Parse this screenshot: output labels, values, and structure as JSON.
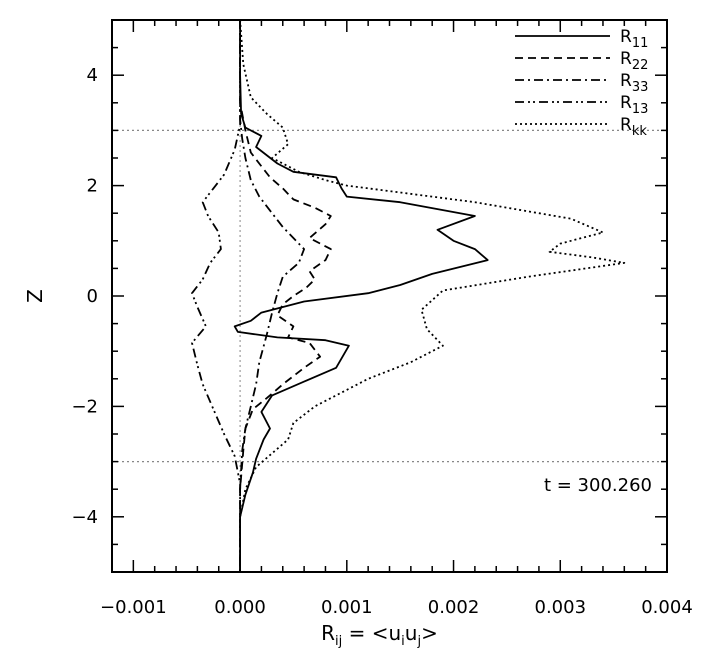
{
  "chart_data": {
    "type": "line",
    "xlabel": {
      "base": "R",
      "base_sub": "ij",
      "eq": " = ",
      "rhs_open": "<u",
      "rhs_sub1": "i",
      "rhs_mid": "u",
      "rhs_sub2": "j",
      "rhs_close": ">"
    },
    "ylabel": "Z",
    "xlim": [
      -0.0012,
      0.004
    ],
    "ylim": [
      -5,
      5
    ],
    "xticks": [
      -0.001,
      0.0,
      0.001,
      0.002,
      0.003,
      0.004
    ],
    "xtick_labels": [
      "−0.001",
      "0.000",
      "0.001",
      "0.002",
      "0.003",
      "0.004"
    ],
    "yticks": [
      -4,
      -2,
      0,
      2,
      4
    ],
    "ytick_labels": [
      "−4",
      "−2",
      "0",
      "2",
      "4"
    ],
    "annotation": "t = 300.260",
    "legend_position": "top-right",
    "reference_lines": {
      "z": [
        3,
        -3
      ],
      "x": [
        0
      ]
    },
    "grid": false,
    "series": [
      {
        "name": "R",
        "sub": "11",
        "dash": "solid",
        "x": [
          0,
          0,
          1e-05,
          5e-05,
          0.0002,
          0.00015,
          0.00035,
          0.0005,
          0.0009,
          0.00095,
          0.001,
          0.0015,
          0.0022,
          0.00185,
          0.002,
          0.0022,
          0.00232,
          0.0018,
          0.0015,
          0.0012,
          0.0006,
          0.0002,
          0.0001,
          -5e-05,
          -2e-05,
          0.00035,
          0.0008,
          0.00102,
          0.0009,
          0.0006,
          0.0003,
          0.0002,
          0.00028,
          0.00022,
          0.00018,
          0.00015,
          0.00012,
          5e-05,
          0,
          0
        ],
        "y": [
          5,
          4,
          3.3,
          3.05,
          2.9,
          2.7,
          2.4,
          2.25,
          2.15,
          1.95,
          1.8,
          1.7,
          1.45,
          1.2,
          1.0,
          0.85,
          0.65,
          0.4,
          0.2,
          0.05,
          -0.1,
          -0.3,
          -0.45,
          -0.55,
          -0.65,
          -0.75,
          -0.8,
          -0.9,
          -1.3,
          -1.55,
          -1.8,
          -2.1,
          -2.4,
          -2.6,
          -2.8,
          -2.95,
          -3.2,
          -3.6,
          -4,
          -5
        ]
      },
      {
        "name": "R",
        "sub": "22",
        "dash": "dashed",
        "x": [
          0,
          0,
          5e-05,
          0.0001,
          0.0002,
          0.00028,
          0.0004,
          0.0005,
          0.0007,
          0.00085,
          0.0008,
          0.00065,
          0.00085,
          0.0008,
          0.00065,
          0.0007,
          0.00062,
          0.0005,
          0.0004,
          0.00035,
          0.0005,
          0.00045,
          0.00065,
          0.00075,
          0.0006,
          0.0004,
          0.00025,
          0.00012,
          5e-05,
          3e-05,
          0,
          0
        ],
        "y": [
          5,
          3.5,
          3.0,
          2.6,
          2.35,
          2.15,
          1.95,
          1.75,
          1.6,
          1.45,
          1.3,
          1.05,
          0.85,
          0.65,
          0.45,
          0.3,
          0.15,
          0.0,
          -0.15,
          -0.35,
          -0.55,
          -0.75,
          -0.85,
          -1.1,
          -1.3,
          -1.6,
          -1.85,
          -2.05,
          -2.4,
          -2.8,
          -3.5,
          -5
        ]
      },
      {
        "name": "R",
        "sub": "33",
        "dash": "dashdot",
        "x": [
          0,
          0,
          2e-05,
          5e-05,
          0.0001,
          0.00018,
          0.0003,
          0.0004,
          0.0005,
          0.0006,
          0.00055,
          0.0004,
          0.00035,
          0.0003,
          0.00025,
          0.00018,
          0.00015,
          0.0001,
          5e-05,
          2e-05,
          0,
          0
        ],
        "y": [
          5,
          3.2,
          2.85,
          2.5,
          2.1,
          1.8,
          1.5,
          1.25,
          1.05,
          0.85,
          0.6,
          0.35,
          0.05,
          -0.3,
          -0.7,
          -1.2,
          -1.6,
          -2.0,
          -2.4,
          -2.8,
          -3.5,
          -5
        ]
      },
      {
        "name": "R",
        "sub": "13",
        "dash": "dashdotdot",
        "x": [
          0,
          0,
          -5e-05,
          -0.00015,
          -0.00025,
          -0.00035,
          -0.0003,
          -0.0002,
          -0.00018,
          -0.00028,
          -0.00035,
          -0.00045,
          -0.0004,
          -0.00032,
          -0.00045,
          -0.0004,
          -0.00035,
          -0.00025,
          -0.00015,
          -5e-05,
          0,
          0
        ],
        "y": [
          5,
          3.1,
          2.65,
          2.2,
          1.95,
          1.7,
          1.45,
          1.15,
          0.85,
          0.6,
          0.3,
          0.05,
          -0.2,
          -0.55,
          -0.85,
          -1.25,
          -1.6,
          -2.05,
          -2.5,
          -2.9,
          -3.4,
          -5
        ]
      },
      {
        "name": "R",
        "sub": "kk",
        "dash": "dotted",
        "x": [
          0,
          3e-05,
          0.0001,
          0.00025,
          0.0004,
          0.00045,
          0.0003,
          0.00055,
          0.0008,
          0.001,
          0.0014,
          0.0022,
          0.0031,
          0.0034,
          0.003,
          0.0029,
          0.0033,
          0.0036,
          0.0027,
          0.0019,
          0.0017,
          0.00175,
          0.0019,
          0.0016,
          0.0012,
          0.00095,
          0.0007,
          0.0005,
          0.00045,
          0.0003,
          0.00015,
          5e-05,
          0,
          0
        ],
        "y": [
          5,
          4.2,
          3.6,
          3.3,
          3.05,
          2.75,
          2.5,
          2.25,
          2.1,
          2.0,
          1.9,
          1.7,
          1.4,
          1.15,
          0.95,
          0.8,
          0.7,
          0.6,
          0.35,
          0.1,
          -0.25,
          -0.6,
          -0.9,
          -1.2,
          -1.5,
          -1.75,
          -2.0,
          -2.3,
          -2.6,
          -2.85,
          -3.1,
          -3.5,
          -4,
          -5
        ]
      }
    ]
  }
}
